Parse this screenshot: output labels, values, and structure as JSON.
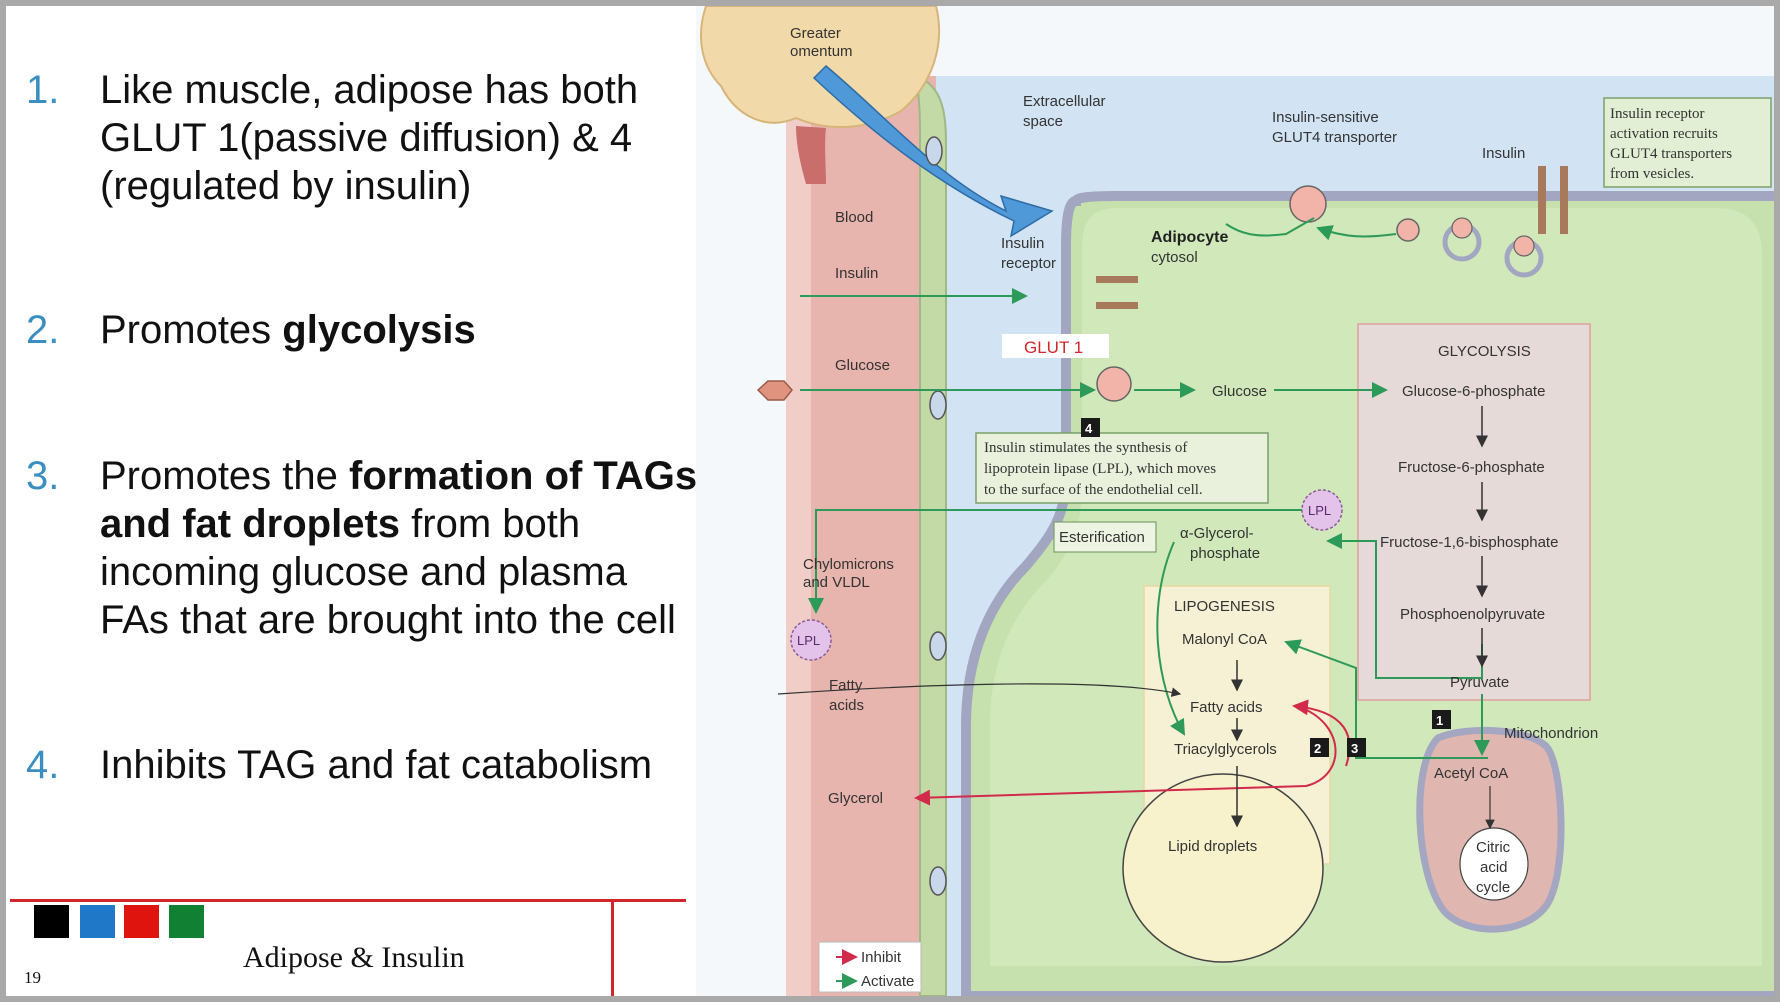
{
  "slide": {
    "page_number": "19",
    "title": "Adipose & Insulin",
    "points": [
      {
        "num": "1.",
        "line1": "Like muscle, adipose has both",
        "line2": "GLUT 1(passive diffusion) & 4",
        "line3": "(regulated by insulin)"
      },
      {
        "num": "2.",
        "pre": "Promotes ",
        "bold": "glycolysis"
      },
      {
        "num": "3.",
        "pre": "Promotes the ",
        "bold1": "formation of TAGs",
        "bold2": "and fat droplets",
        "post2": " from both",
        "line3": "incoming glucose and plasma",
        "line4": "FAs that are brought into the cell"
      },
      {
        "num": "4.",
        "text": "Inhibits TAG and fat catabolism"
      }
    ],
    "footer_colors": [
      "#000000",
      "#1f78c8",
      "#e0140f",
      "#118033"
    ]
  },
  "diagram": {
    "greater_omentum": [
      "Greater",
      "omentum"
    ],
    "extracellular": [
      "Extracellular",
      "space"
    ],
    "blood": "Blood",
    "insulin_left": "Insulin",
    "glucose_left": "Glucose",
    "chylomicrons": [
      "Chylomicrons",
      "and VLDL"
    ],
    "fatty_acids_left": [
      "Fatty",
      "acids"
    ],
    "glycerol": "Glycerol",
    "insulin_receptor": [
      "Insulin",
      "receptor"
    ],
    "adipocyte": "Adipocyte",
    "cytosol": "cytosol",
    "glut4": [
      "Insulin-sensitive",
      "GLUT4 transporter"
    ],
    "insulin_top": "Insulin",
    "callout": [
      "Insulin receptor",
      "activation recruits",
      "GLUT4 transporters",
      "from vesicles."
    ],
    "glut1": "GLUT 1",
    "glucose_mid": "Glucose",
    "lpl_box": [
      "Insulin stimulates the synthesis of",
      "lipoprotein lipase (LPL), which moves",
      "to the surface of the endothelial cell."
    ],
    "lpl": "LPL",
    "esterification": "Esterification",
    "glycerol_p": [
      "α-Glycerol-",
      "phosphate"
    ],
    "glycolysis": "GLYCOLYSIS",
    "g6p": "Glucose-6-phosphate",
    "f6p": "Fructose-6-phosphate",
    "f16bp": "Fructose-1,6-bisphosphate",
    "pep": "Phosphoenolpyruvate",
    "pyruvate": "Pyruvate",
    "lipogenesis": "LIPOGENESIS",
    "malonyl": "Malonyl CoA",
    "fatty_acids": "Fatty acids",
    "tag": "Triacylglycerols",
    "lipid_droplets": "Lipid droplets",
    "mitochondrion": "Mitochondrion",
    "acetyl": "Acetyl CoA",
    "citric": [
      "Citric",
      "acid",
      "cycle"
    ],
    "step_labels": [
      "1",
      "2",
      "3",
      "4"
    ],
    "legend_inhibit": "Inhibit",
    "legend_activate": "Activate"
  }
}
